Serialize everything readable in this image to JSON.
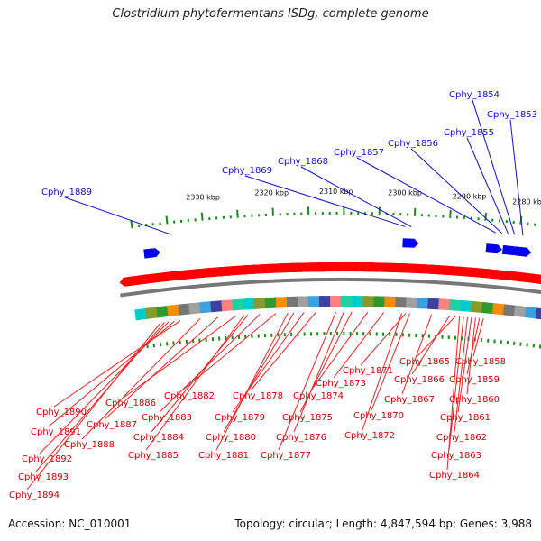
{
  "title": "Clostridium phytofermentans ISDg, complete genome",
  "footer": {
    "accession": "Accession: NC_010001",
    "topology": "Topology: circular; Length: 4,847,594 bp; Genes: 3,988"
  },
  "kbp_labels": [
    {
      "text": "2280 kbp",
      "pos": 0.93
    },
    {
      "text": "2290 kbp",
      "pos": 0.79
    },
    {
      "text": "2300 kbp",
      "pos": 0.64
    },
    {
      "text": "2310 kbp",
      "pos": 0.48
    },
    {
      "text": "2320 kbp",
      "pos": 0.33
    },
    {
      "text": "2330 kbp",
      "pos": 0.17
    }
  ],
  "top_genes": [
    {
      "text": "Cphy_1854",
      "pos": 0.905
    },
    {
      "text": "Cphy_1853",
      "pos": 0.925
    },
    {
      "text": "Cphy_1855",
      "pos": 0.89
    },
    {
      "text": "Cphy_1856",
      "pos": 0.875
    },
    {
      "text": "Cphy_1857",
      "pos": 0.86
    },
    {
      "text": "Cphy_1868",
      "pos": 0.66
    },
    {
      "text": "Cphy_1869",
      "pos": 0.645
    },
    {
      "text": "Cphy_1889",
      "pos": 0.09
    }
  ],
  "bottom_genes": [
    {
      "text": "Cphy_1858",
      "pos": 0.85
    },
    {
      "text": "Cphy_1859",
      "pos": 0.84
    },
    {
      "text": "Cphy_1860",
      "pos": 0.83
    },
    {
      "text": "Cphy_1861",
      "pos": 0.82
    },
    {
      "text": "Cphy_1862",
      "pos": 0.81
    },
    {
      "text": "Cphy_1863",
      "pos": 0.8
    },
    {
      "text": "Cphy_1864",
      "pos": 0.79
    },
    {
      "text": "Cphy_1865",
      "pos": 0.78
    },
    {
      "text": "Cphy_1866",
      "pos": 0.765
    },
    {
      "text": "Cphy_1867",
      "pos": 0.72
    },
    {
      "text": "Cphy_1870",
      "pos": 0.665
    },
    {
      "text": "Cphy_1871",
      "pos": 0.655
    },
    {
      "text": "Cphy_1872",
      "pos": 0.645
    },
    {
      "text": "Cphy_1873",
      "pos": 0.6
    },
    {
      "text": "Cphy_1874",
      "pos": 0.56
    },
    {
      "text": "Cphy_1875",
      "pos": 0.52
    },
    {
      "text": "Cphy_1876",
      "pos": 0.5
    },
    {
      "text": "Cphy_1877",
      "pos": 0.48
    },
    {
      "text": "Cphy_1878",
      "pos": 0.43
    },
    {
      "text": "Cphy_1879",
      "pos": 0.4
    },
    {
      "text": "Cphy_1880",
      "pos": 0.375
    },
    {
      "text": "Cphy_1881",
      "pos": 0.36
    },
    {
      "text": "Cphy_1882",
      "pos": 0.33
    },
    {
      "text": "Cphy_1883",
      "pos": 0.29
    },
    {
      "text": "Cphy_1884",
      "pos": 0.26
    },
    {
      "text": "Cphy_1885",
      "pos": 0.25
    },
    {
      "text": "Cphy_1886",
      "pos": 0.23
    },
    {
      "text": "Cphy_1887",
      "pos": 0.185
    },
    {
      "text": "Cphy_1888",
      "pos": 0.14
    },
    {
      "text": "Cphy_1890",
      "pos": 0.09
    },
    {
      "text": "Cphy_1891",
      "pos": 0.075
    },
    {
      "text": "Cphy_1892",
      "pos": 0.06
    },
    {
      "text": "Cphy_1893",
      "pos": 0.05
    },
    {
      "text": "Cphy_1894",
      "pos": 0.04
    }
  ],
  "colors": {
    "forward_gene": "#ff0000",
    "reverse_gene": "#0000ee",
    "backbone": "#777777",
    "tick": "#1a8a1a",
    "top_label": "#1010cc",
    "bottom_label": "#cc0000"
  },
  "cog_colors": [
    "#00cccc",
    "#8a9a2a",
    "#2e9a2e",
    "#ff8c00",
    "#777777",
    "#a0a0a0",
    "#3aa0e0",
    "#4040a0",
    "#ff8080",
    "#20d0a0"
  ]
}
